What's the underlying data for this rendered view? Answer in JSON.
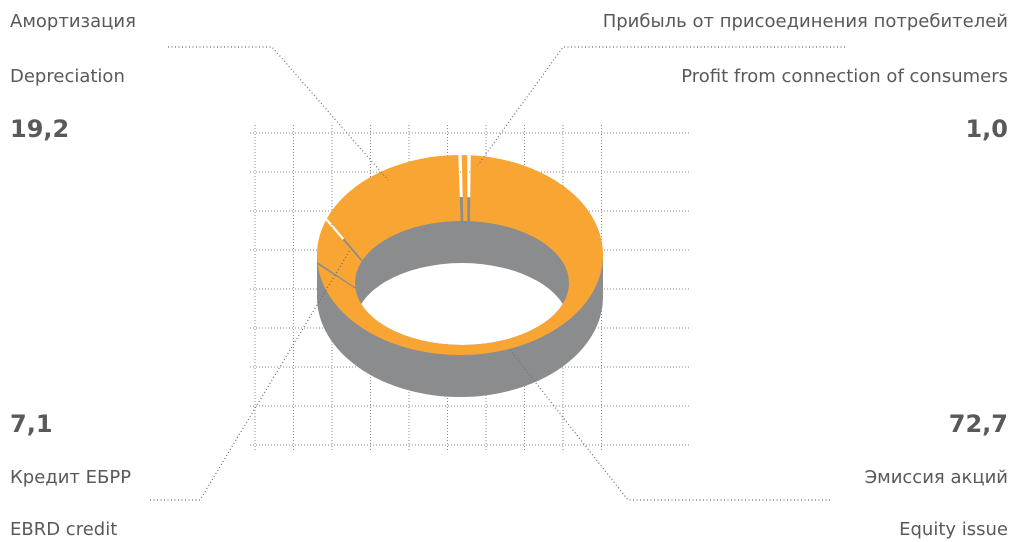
{
  "chart_data": {
    "type": "pie",
    "categories": [
      "Прибыль от присоединения потребителей",
      "Эмиссия акций",
      "Кредит ЕБРР",
      "Амортизация"
    ],
    "categories_en": [
      "Profit from connection of consumers",
      "Equity issue",
      "EBRD credit",
      "Depreciation"
    ],
    "values": [
      1.0,
      72.7,
      7.1,
      19.2
    ],
    "value_labels": [
      "1,0",
      "72,7",
      "7,1",
      "19,2"
    ],
    "color": "#f9a533",
    "side_color": "#8a8c8e"
  }
}
